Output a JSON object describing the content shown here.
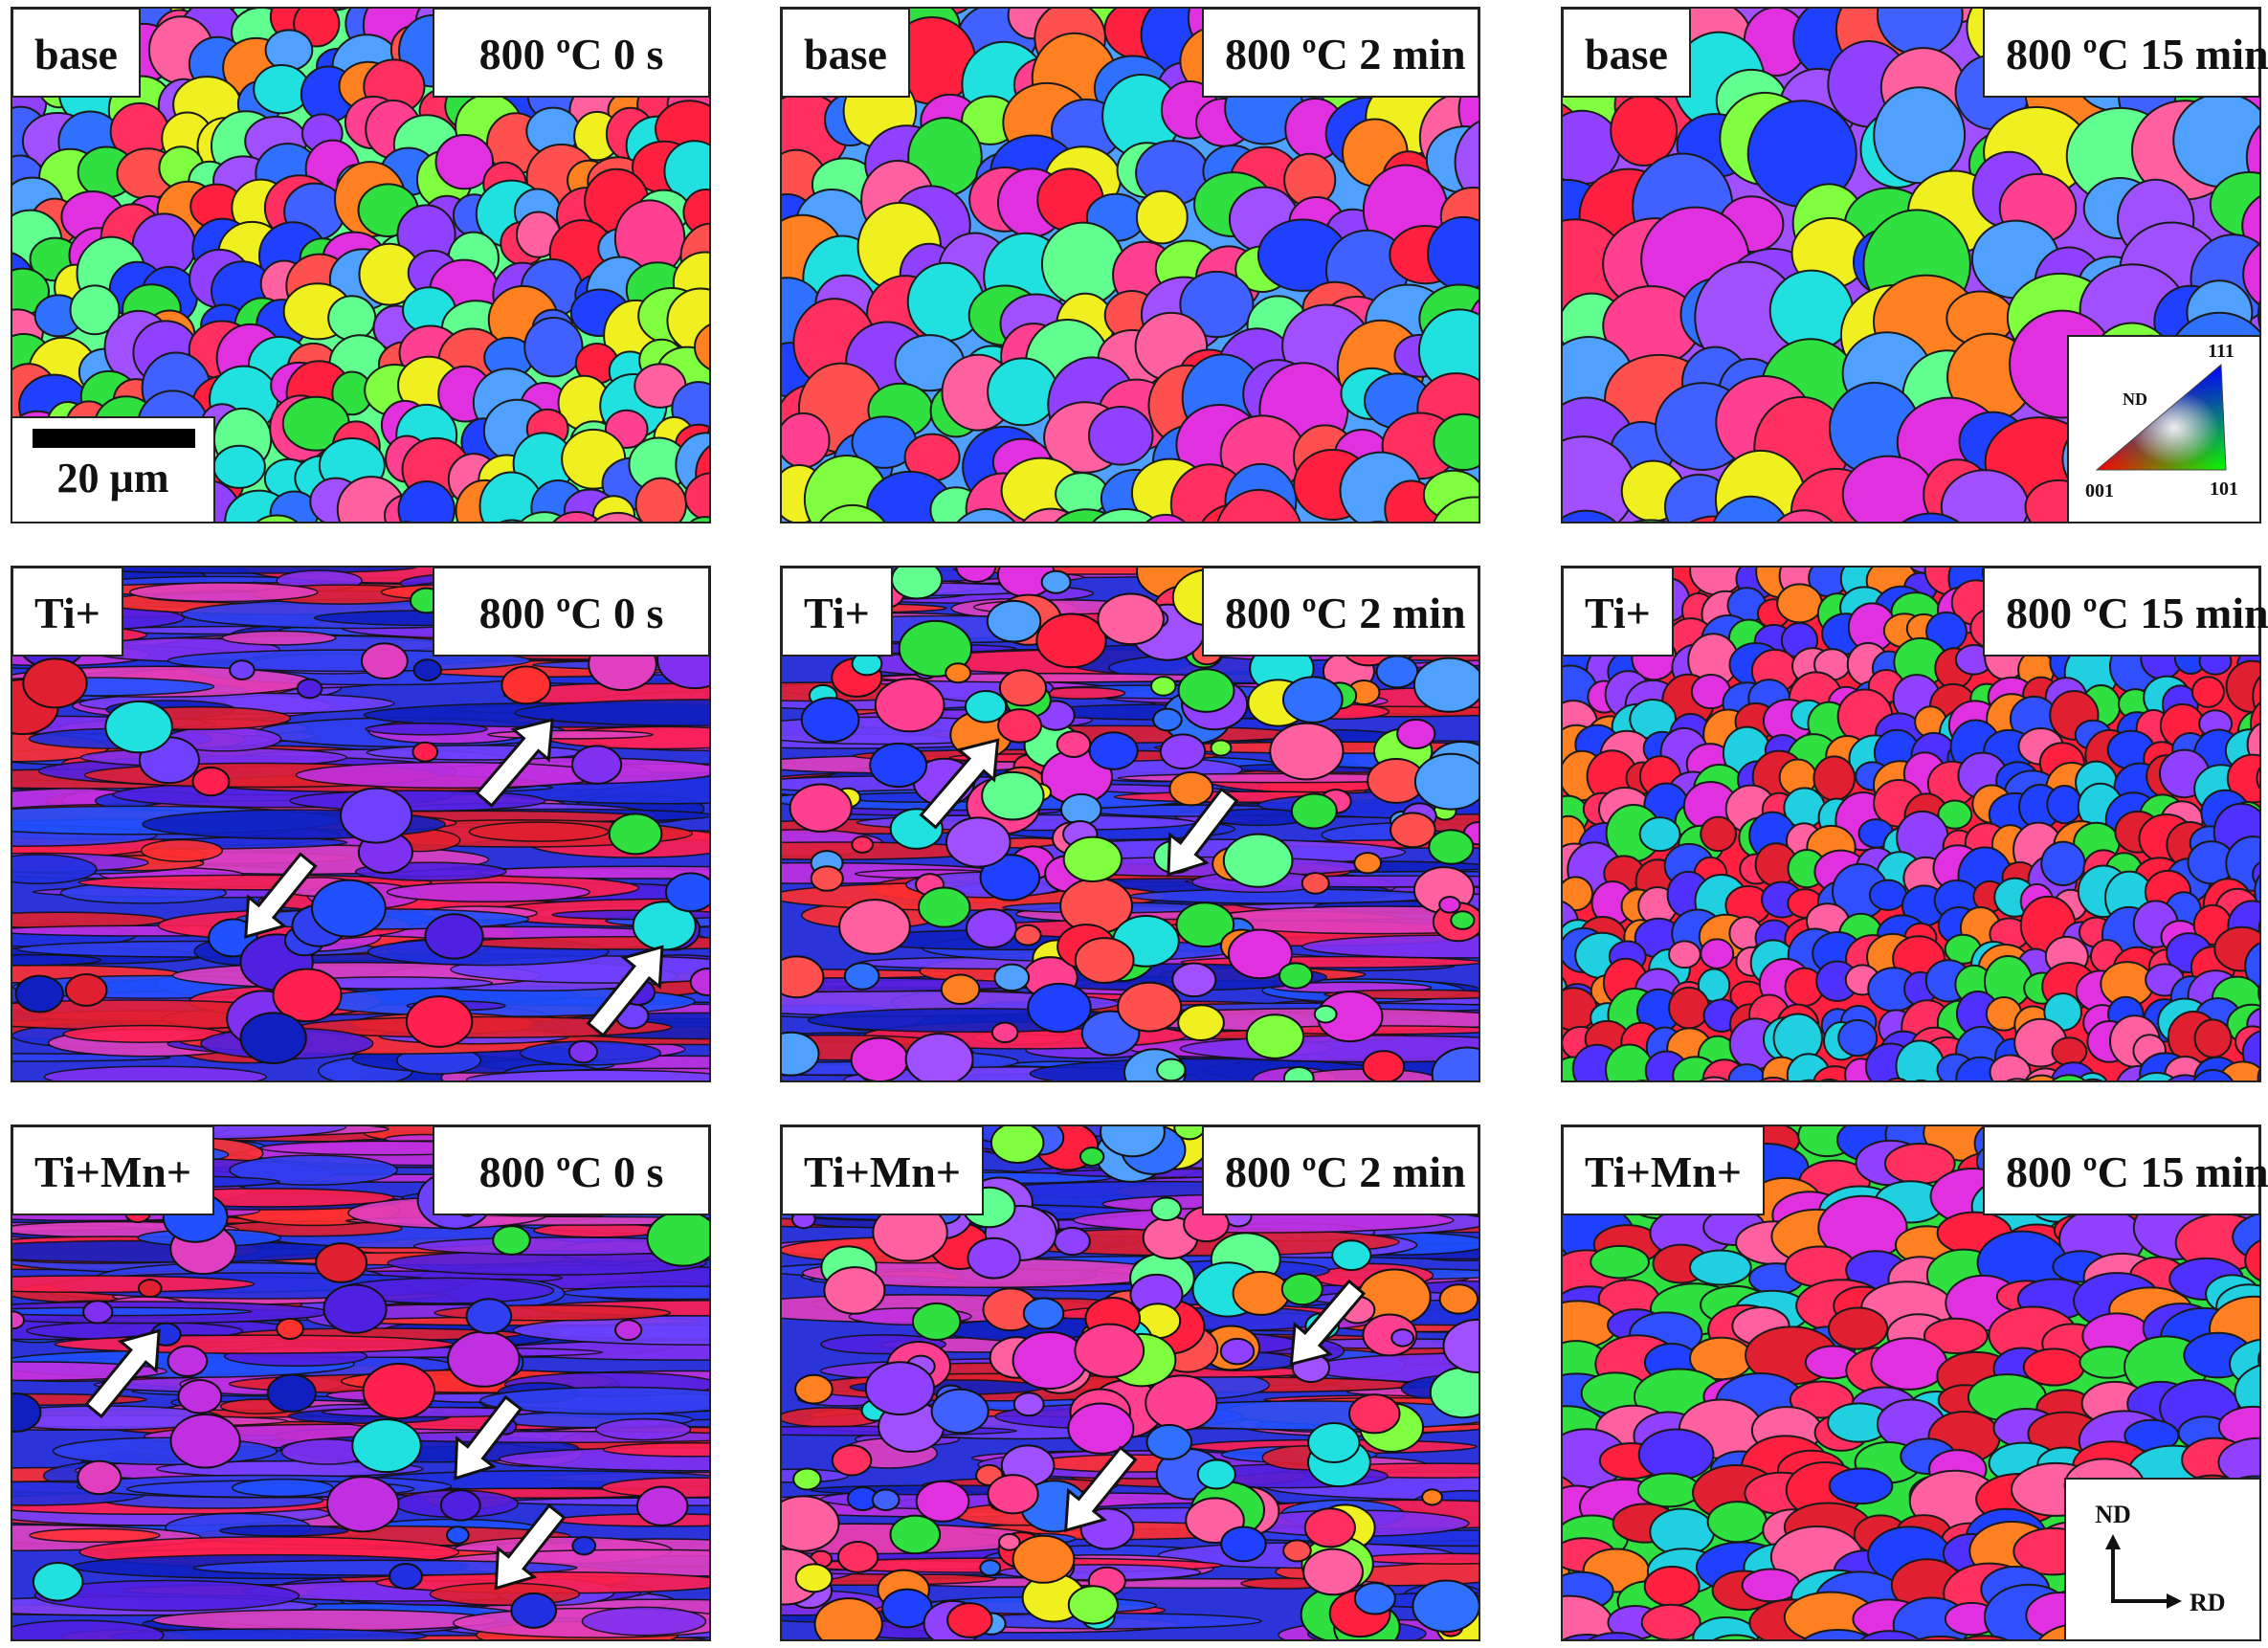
{
  "panels": [
    {
      "material": "base",
      "condition": "800 ºC 0 s"
    },
    {
      "material": "base",
      "condition": "800 ºC 2 min"
    },
    {
      "material": "base",
      "condition": "800 ºC 15 min"
    },
    {
      "material": "Ti+",
      "condition": "800 ºC 0 s"
    },
    {
      "material": "Ti+",
      "condition": "800 ºC 2 min"
    },
    {
      "material": "Ti+",
      "condition": "800 ºC 15 min"
    },
    {
      "material": "Ti+Mn+",
      "condition": "800 ºC 0 s"
    },
    {
      "material": "Ti+Mn+",
      "condition": "800 ºC 2 min"
    },
    {
      "material": "Ti+Mn+",
      "condition": "800 ºC 15 min"
    }
  ],
  "scale_bar": "20 µm",
  "ipf_legend": {
    "title": "ND",
    "corner_111": "111",
    "corner_001": "001",
    "corner_101": "101"
  },
  "axes": {
    "vertical": "ND",
    "horizontal": "RD"
  }
}
